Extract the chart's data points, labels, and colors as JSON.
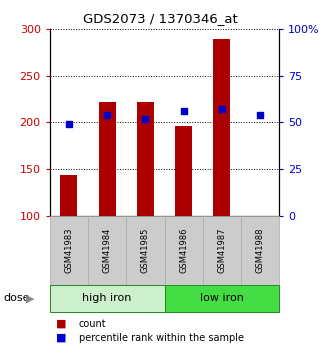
{
  "title": "GDS2073 / 1370346_at",
  "categories": [
    "GSM41983",
    "GSM41984",
    "GSM41985",
    "GSM41986",
    "GSM41987",
    "GSM41988"
  ],
  "count_values": [
    144,
    222,
    222,
    196,
    290,
    100
  ],
  "percentile_values": [
    49,
    54,
    52,
    56,
    57,
    54
  ],
  "ylim_left": [
    100,
    300
  ],
  "ylim_right": [
    0,
    100
  ],
  "left_ticks": [
    100,
    150,
    200,
    250,
    300
  ],
  "right_ticks": [
    0,
    25,
    50,
    75,
    100
  ],
  "right_tick_labels": [
    "0",
    "25",
    "50",
    "75",
    "100%"
  ],
  "groups": [
    {
      "label": "high iron",
      "indices": [
        0,
        1,
        2
      ],
      "color": "#ccf0cc"
    },
    {
      "label": "low iron",
      "indices": [
        3,
        4,
        5
      ],
      "color": "#44dd44"
    }
  ],
  "dose_label": "dose",
  "bar_color": "#aa0000",
  "dot_color": "#0000cc",
  "legend_count_label": "count",
  "legend_pct_label": "percentile rank within the sample",
  "left_axis_color": "#cc0000",
  "right_axis_color": "#0000cc",
  "bar_width": 0.45,
  "dot_size": 25,
  "cat_box_color": "#cccccc",
  "cat_box_edge": "#aaaaaa"
}
